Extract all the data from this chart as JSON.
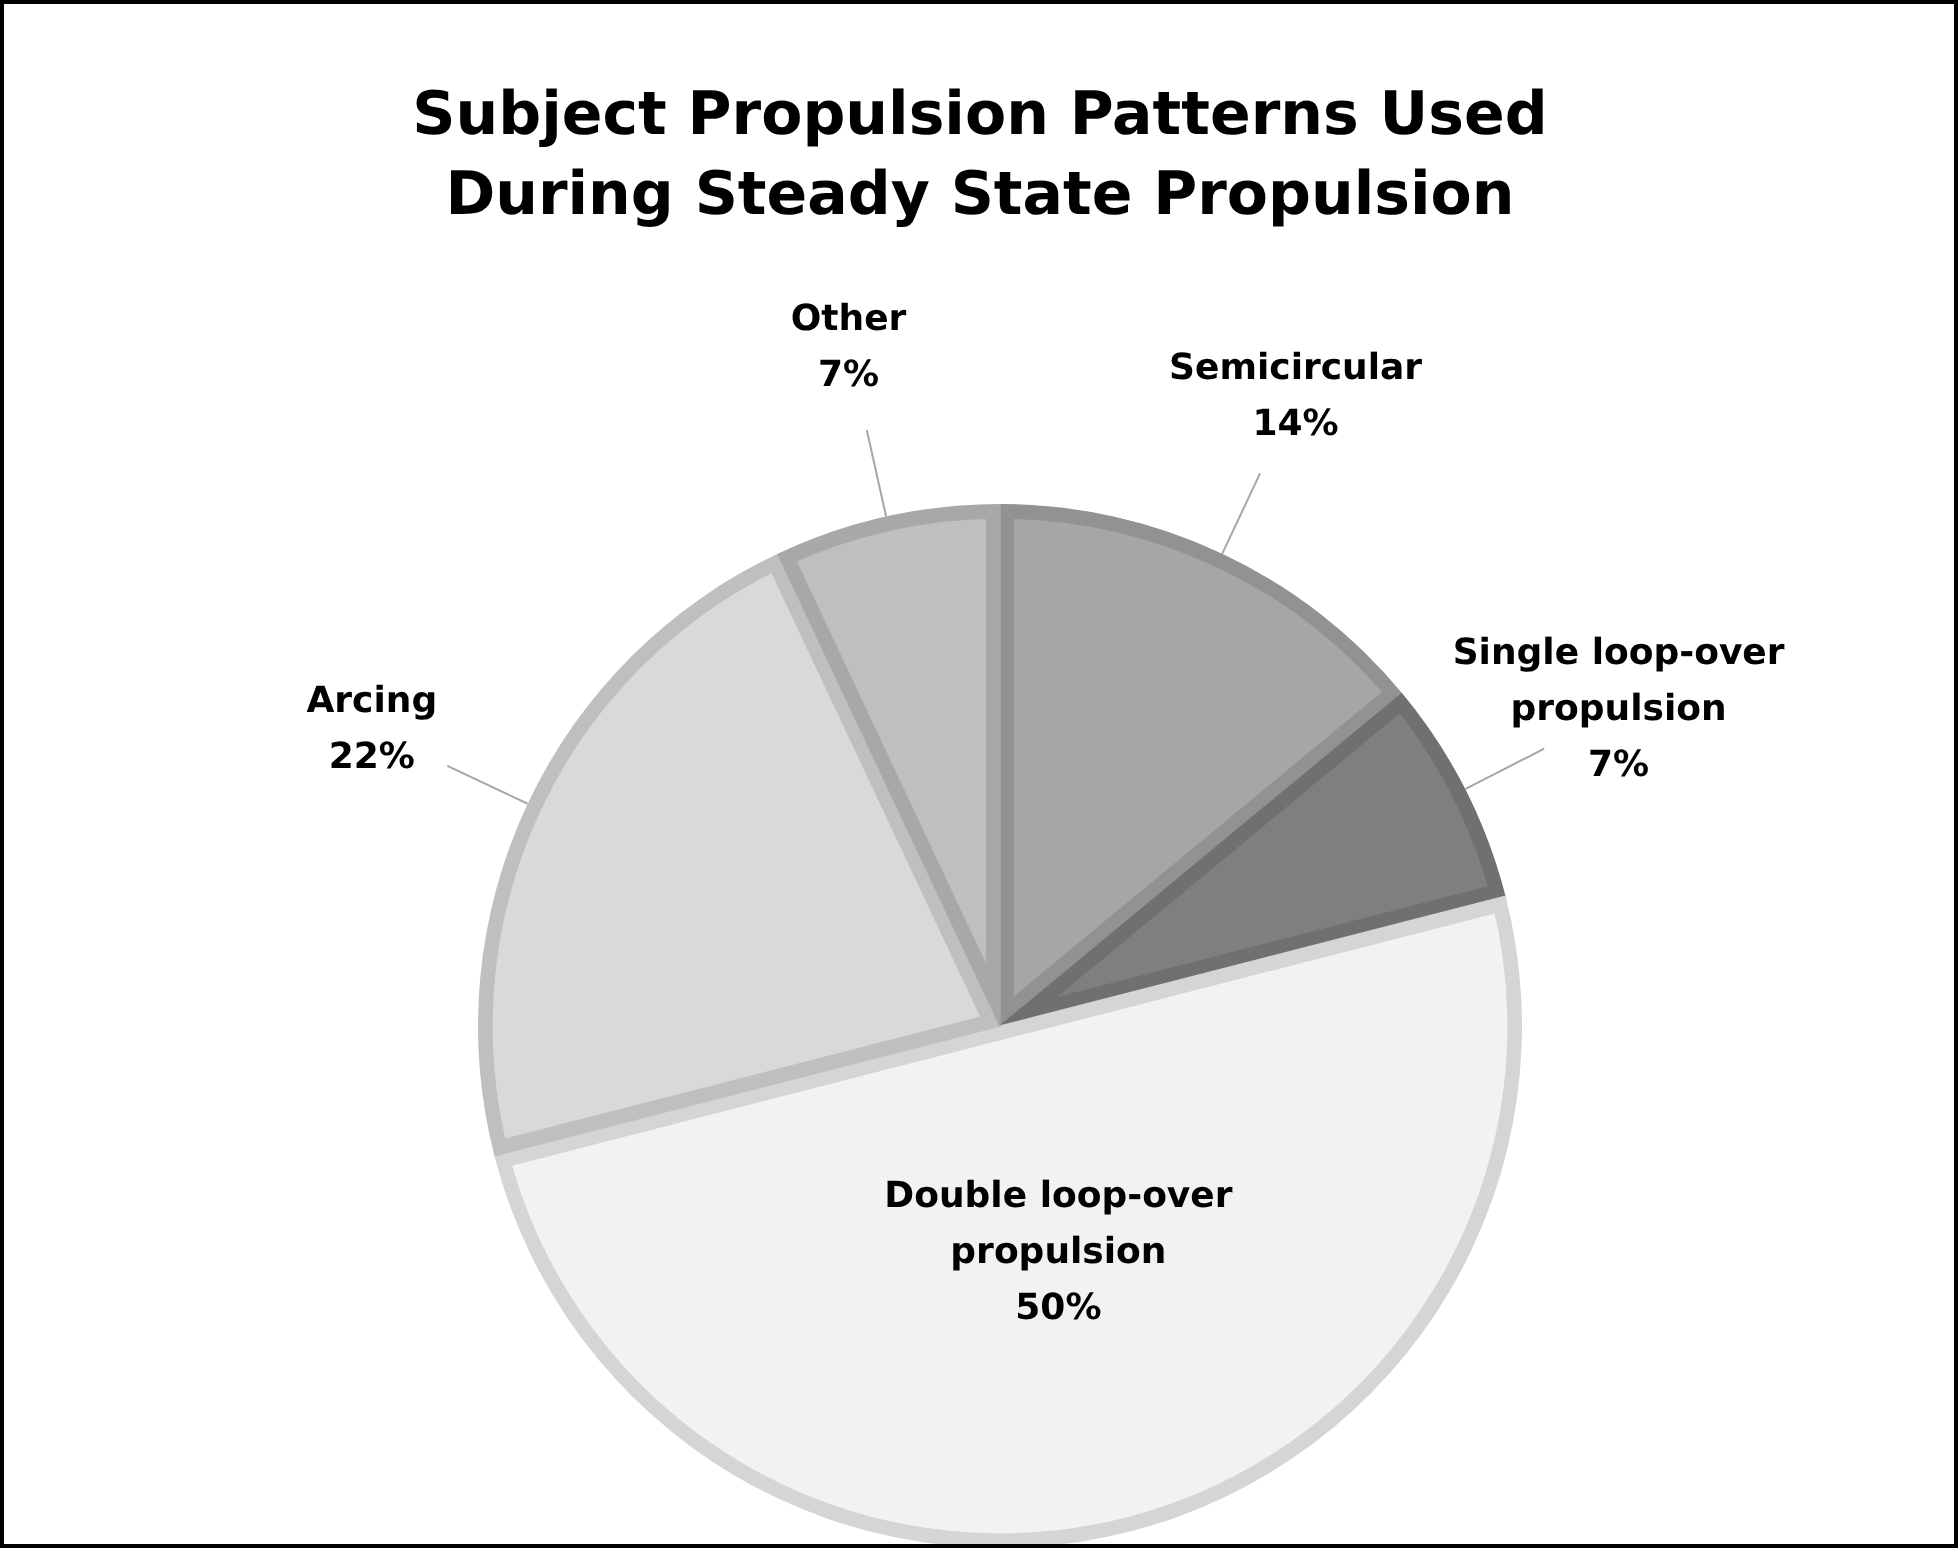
{
  "chart_data": {
    "type": "pie",
    "title": "Subject Propulsion Patterns Used During Steady State Propulsion",
    "categories": [
      "Semicircular",
      "Single loop-over propulsion",
      "Double loop-over propulsion",
      "Arcing",
      "Other"
    ],
    "values": [
      14,
      7,
      50,
      22,
      7
    ],
    "value_labels": [
      "14%",
      "7%",
      "50%",
      "22%",
      "7%"
    ],
    "colors": [
      "#a6a6a6",
      "#7f7f7f",
      "#f2f2f2",
      "#d9d9d9",
      "#bfbfbf"
    ],
    "legend": false
  }
}
